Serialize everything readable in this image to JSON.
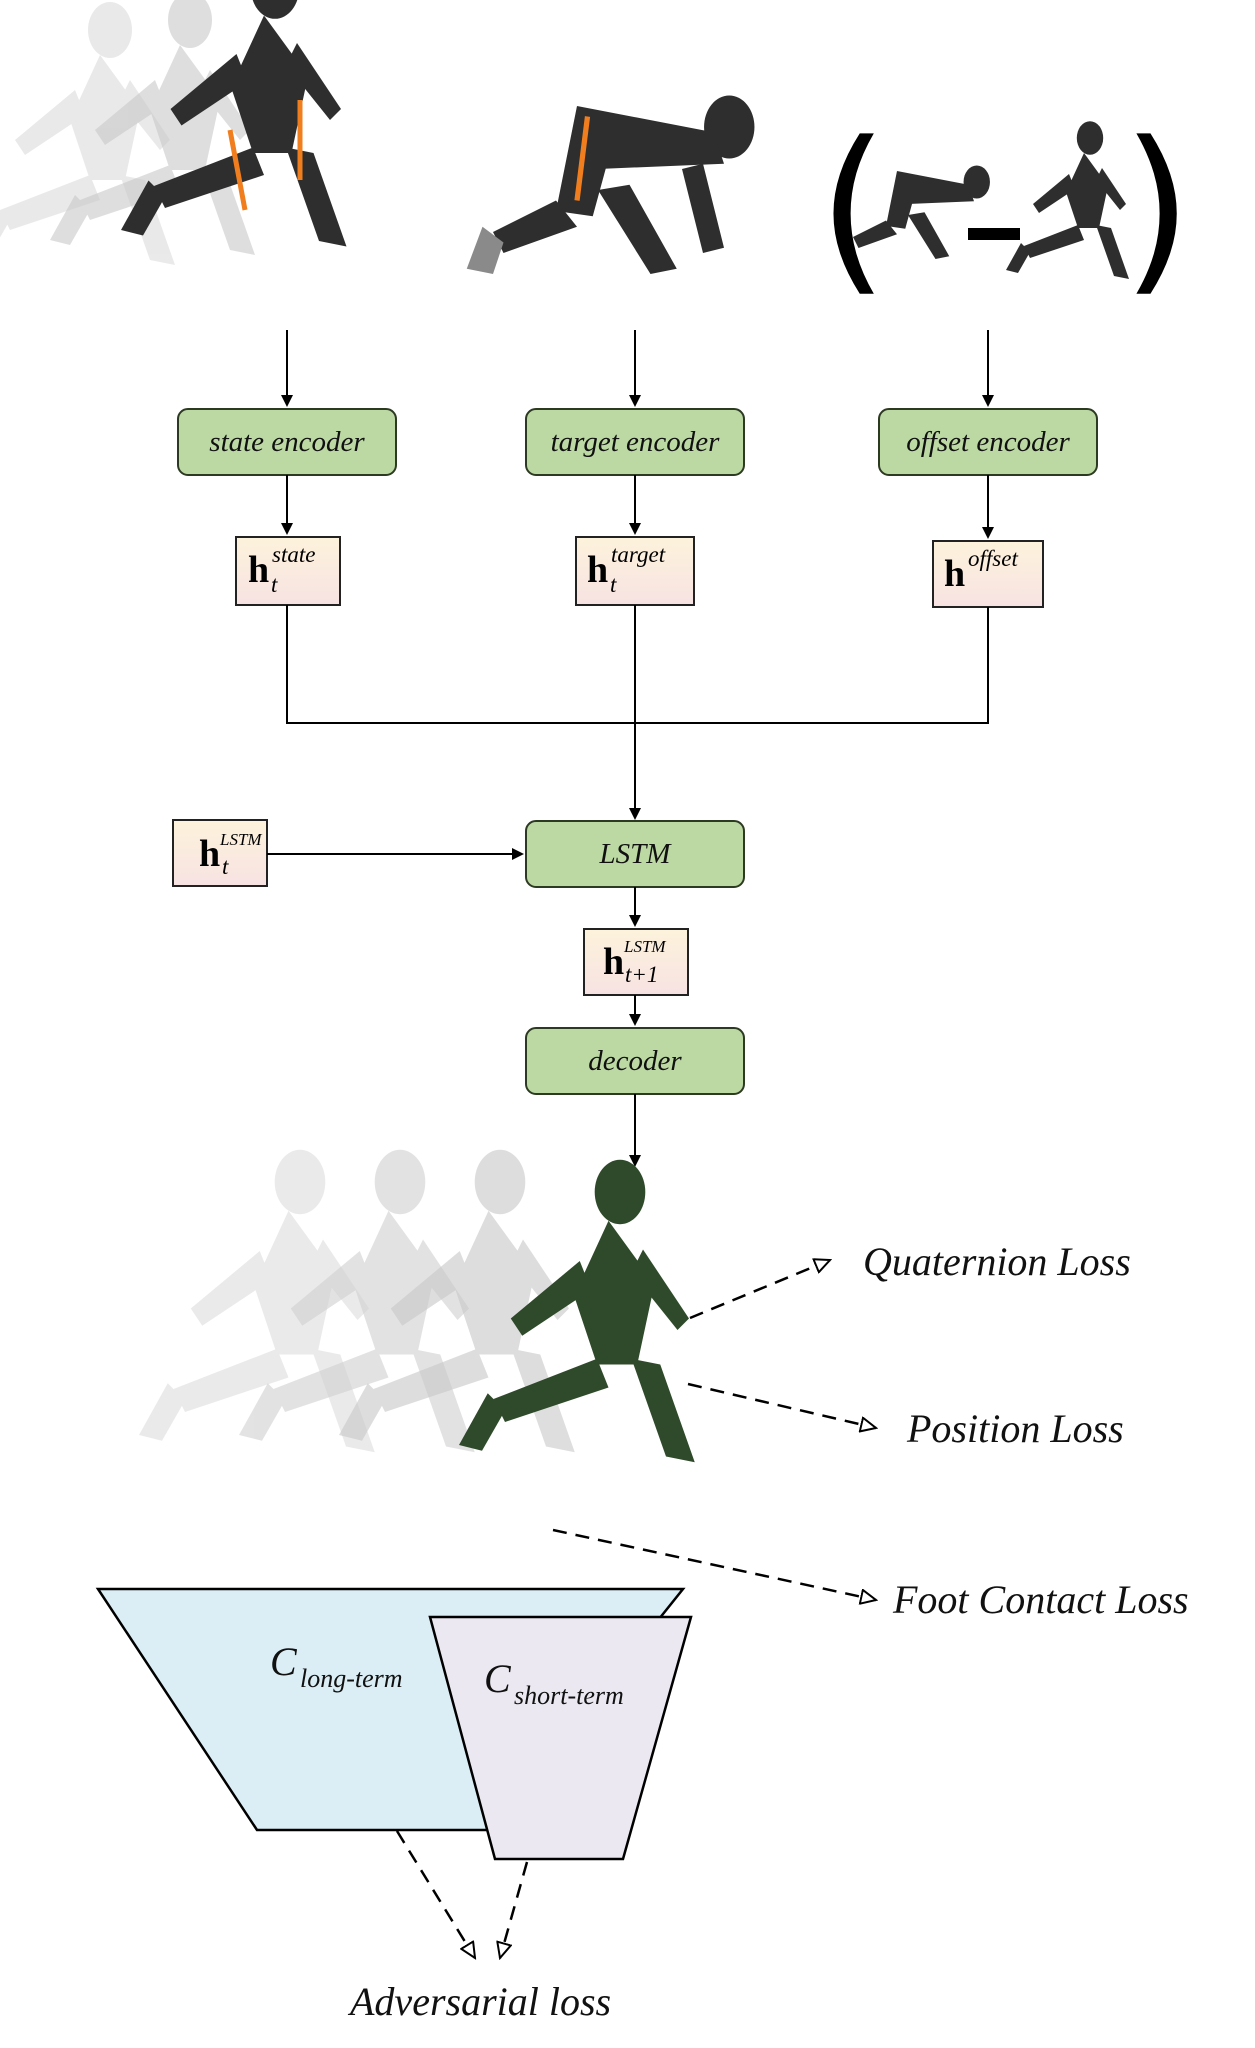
{
  "inputs": {
    "state_encoder_label": "state encoder",
    "target_encoder_label": "target encoder",
    "offset_encoder_label": "offset encoder"
  },
  "hidden": {
    "h_symbol": "h",
    "state_sup": "state",
    "target_sup": "target",
    "offset_sup": "offset",
    "t_sub": "t",
    "lstm_sup": "LSTM",
    "t1_sub": "t+1"
  },
  "core": {
    "lstm_label": "LSTM",
    "decoder_label": "decoder"
  },
  "losses": {
    "quaternion": "Quaternion Loss",
    "position": "Position Loss",
    "foot_contact": "Foot Contact Loss",
    "adversarial": "Adversarial loss"
  },
  "critics": {
    "c_symbol": "C",
    "long_term_sub": "long-term",
    "short_term_sub": "short-term"
  },
  "colors": {
    "encoder_fill": "#bcd9a4",
    "encoder_stroke": "#2d3a22",
    "hidden_fill_top": "#fdf3dc",
    "hidden_fill_bottom": "#f7e2e2",
    "long_term_fill": "#dbeef5",
    "short_term_fill": "#ebe8f1",
    "figure_dark": "#2e2e2e",
    "figure_accent": "#f07e1e",
    "figure_green": "#2f4a2a"
  }
}
